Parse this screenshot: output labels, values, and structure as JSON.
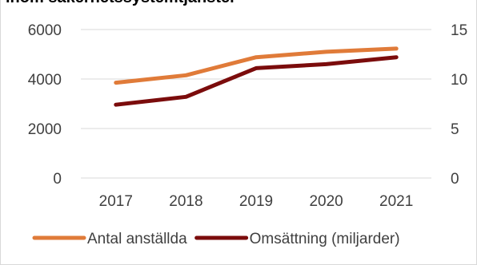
{
  "chart_data": {
    "type": "line",
    "title": "inom säkerhetssystemtjänster",
    "categories": [
      "2017",
      "2018",
      "2019",
      "2020",
      "2021"
    ],
    "series": [
      {
        "name": "Antal anställda",
        "axis": "left",
        "color": "#e07b39",
        "values": [
          3850,
          4150,
          4880,
          5100,
          5230
        ]
      },
      {
        "name": "Omsättning (miljarder)",
        "axis": "right",
        "color": "#7b0c0c",
        "values": [
          7.4,
          8.2,
          11.1,
          11.5,
          12.2
        ]
      }
    ],
    "y_left": {
      "min": 0,
      "max": 6000,
      "ticks": [
        0,
        2000,
        4000,
        6000
      ],
      "tick_labels": [
        "0",
        "2000",
        "4000",
        "6000"
      ]
    },
    "y_right": {
      "min": 0,
      "max": 15,
      "ticks": [
        0,
        5,
        10,
        15
      ],
      "tick_labels": [
        "0",
        "5",
        "10",
        "15"
      ]
    },
    "grid": true,
    "legend_position": "bottom",
    "xlabel": "",
    "ylabel": ""
  }
}
